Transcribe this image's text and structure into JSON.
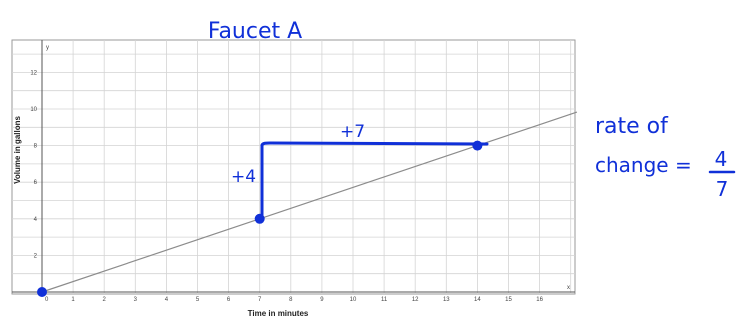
{
  "chart_data": {
    "type": "line",
    "title": "Faucet A",
    "xlabel": "Time in minutes",
    "ylabel": "Volume in gallons",
    "x_axis_letter": "x",
    "y_axis_letter": "y",
    "xlim": [
      0,
      17
    ],
    "ylim": [
      -1,
      13
    ],
    "xticks": [
      1,
      2,
      3,
      4,
      5,
      6,
      7,
      8,
      9,
      10,
      11,
      12,
      13,
      14,
      15,
      16
    ],
    "yticks": [
      2,
      4,
      6,
      8,
      10,
      12
    ],
    "origin_label": "0",
    "grid": true,
    "series": [
      {
        "x": [
          0,
          7,
          14,
          17.2
        ],
        "y": [
          0,
          4,
          8,
          9.83
        ]
      }
    ],
    "points": [
      {
        "x": 0,
        "y": 0
      },
      {
        "x": 7,
        "y": 4
      },
      {
        "x": 14,
        "y": 8
      }
    ],
    "annotations": {
      "run_label": "+7",
      "rise_label": "+4",
      "rate_line1": "rate of",
      "rate_line2": "change =",
      "rate_numerator": "4",
      "rate_denominator": "7"
    },
    "colors": {
      "ink": "#1030d8",
      "line": "#8c8c8c",
      "grid": "#d4d4d4"
    }
  }
}
